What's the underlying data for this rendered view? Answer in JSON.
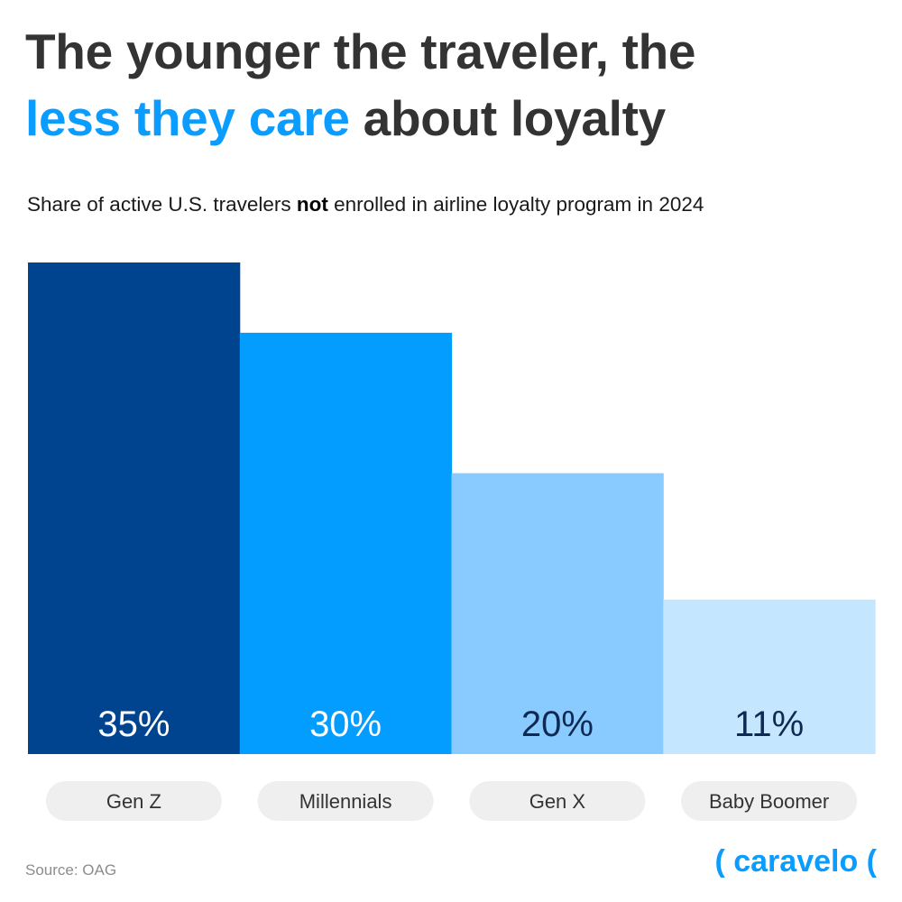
{
  "header": {
    "title_part1": "The younger the traveler, the",
    "title_accent": "less they care",
    "title_part2": "about loyalty",
    "subtitle_before": "Share of active U.S. travelers",
    "subtitle_bold": "not",
    "subtitle_after": "enrolled in airline loyalty program in 2024"
  },
  "colors": {
    "accent": "#0a9cff",
    "title_text": "#333333"
  },
  "chart_data": {
    "type": "bar",
    "categories": [
      "Gen Z",
      "Millennials",
      "Gen X",
      "Baby Boomer"
    ],
    "values": [
      35,
      30,
      20,
      11
    ],
    "value_labels": [
      "35%",
      "30%",
      "20%",
      "11%"
    ],
    "bar_colors": [
      "#004490",
      "#039dff",
      "#89cbff",
      "#c5e6ff"
    ],
    "value_label_colors": [
      "#ffffff",
      "#ffffff",
      "#0e2a52",
      "#0e2a52"
    ],
    "ylim": [
      0,
      35
    ],
    "grid": false,
    "legend": "none"
  },
  "footer": {
    "source": "Source: OAG",
    "logo_text": "( caravelo ("
  }
}
